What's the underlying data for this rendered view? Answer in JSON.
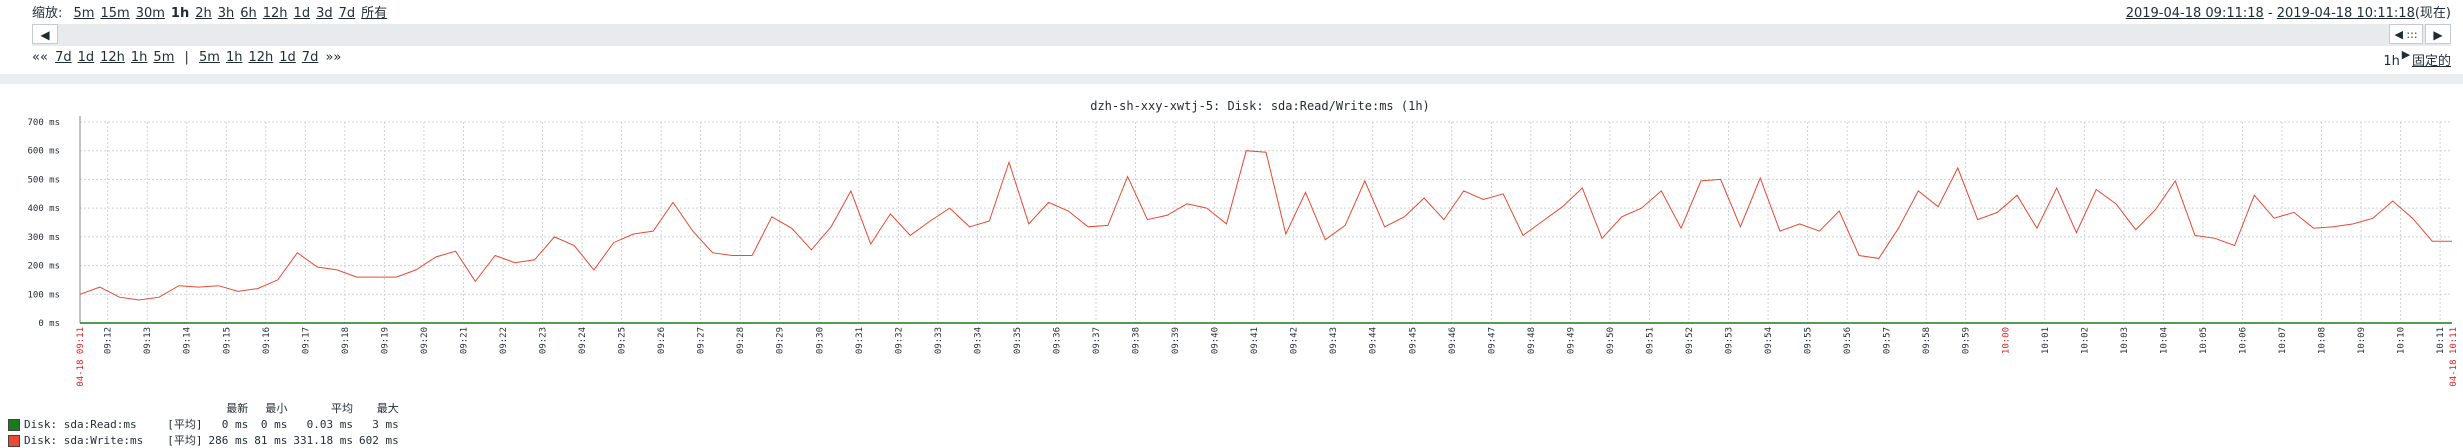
{
  "zoom": {
    "label": "缩放:",
    "options": [
      "5m",
      "15m",
      "30m",
      "1h",
      "2h",
      "3h",
      "6h",
      "12h",
      "1d",
      "3d",
      "7d",
      "所有"
    ],
    "active": "1h"
  },
  "range": {
    "from": "2019-04-18 09:11:18",
    "sep": " - ",
    "to": "2019-04-18 10:11:18",
    "now": "(现在)"
  },
  "scroll": {
    "left_btn": "◀",
    "right_btn": "▶",
    "mid_btn": "◀ ::: ▶"
  },
  "nav": {
    "back": "««",
    "back_items": [
      "7d",
      "1d",
      "12h",
      "1h",
      "5m"
    ],
    "sep": "|",
    "fwd_items": [
      "5m",
      "1h",
      "12h",
      "1d",
      "7d"
    ],
    "fwd": "»»"
  },
  "period": {
    "value": "1h",
    "fixed_label": "固定的"
  },
  "chart_data": {
    "type": "line",
    "title": "dzh-sh-xxy-xwtj-5:  Disk: sda:Read/Write:ms  (1h)",
    "ylim": [
      0,
      700
    ],
    "yticks": [
      "0 ms",
      "100 ms",
      "200 ms",
      "300 ms",
      "400 ms",
      "500 ms",
      "600 ms",
      "700 ms"
    ],
    "xticks": [
      "09:12",
      "09:13",
      "09:14",
      "09:15",
      "09:16",
      "09:17",
      "09:18",
      "09:19",
      "09:20",
      "09:21",
      "09:22",
      "09:23",
      "09:24",
      "09:25",
      "09:26",
      "09:27",
      "09:28",
      "09:29",
      "09:30",
      "09:31",
      "09:32",
      "09:33",
      "09:34",
      "09:35",
      "09:36",
      "09:37",
      "09:38",
      "09:39",
      "09:40",
      "09:41",
      "09:42",
      "09:43",
      "09:44",
      "09:45",
      "09:46",
      "09:47",
      "09:48",
      "09:49",
      "09:50",
      "09:51",
      "09:52",
      "09:53",
      "09:54",
      "09:55",
      "09:56",
      "09:57",
      "09:58",
      "09:59",
      "10:00",
      "10:01",
      "10:02",
      "10:03",
      "10:04",
      "10:05",
      "10:06",
      "10:07",
      "10:08",
      "10:09",
      "10:10",
      "10:11"
    ],
    "start_label": "04-18 09:11",
    "end_label": "04-18 10:11",
    "grid": true,
    "series": [
      {
        "name": "Disk: sda:Read:ms",
        "color": "#1b7a1b",
        "values": [
          0,
          0,
          0,
          0,
          0,
          0,
          0,
          0,
          0,
          0,
          0,
          0,
          0,
          0,
          0,
          0,
          0,
          0,
          0,
          0,
          0,
          0,
          0,
          0,
          0,
          0,
          0,
          0,
          0,
          0,
          0,
          0,
          0,
          0,
          0,
          0,
          0,
          0,
          0,
          0,
          0,
          0,
          0,
          0,
          0,
          0,
          0,
          0,
          0,
          0,
          0,
          0,
          0,
          0,
          0,
          0,
          0,
          0,
          0,
          0,
          0,
          0,
          0,
          0,
          0,
          0,
          0,
          0,
          0,
          0,
          0,
          0,
          0,
          0,
          0,
          0,
          0,
          0,
          0,
          0,
          0,
          0,
          0,
          0,
          0,
          0,
          0,
          0,
          0,
          0,
          0,
          0,
          0,
          0,
          0,
          0,
          0,
          0,
          0,
          0,
          0,
          0,
          0,
          0,
          0,
          0,
          0,
          0,
          0,
          0,
          0,
          0,
          0,
          0,
          0,
          0,
          0,
          0,
          0,
          0
        ]
      },
      {
        "name": "Disk: sda:Write:ms",
        "color": "#e84a33",
        "values": [
          100,
          125,
          90,
          80,
          90,
          130,
          125,
          130,
          110,
          120,
          150,
          245,
          195,
          185,
          160,
          160,
          160,
          185,
          230,
          250,
          145,
          235,
          210,
          220,
          300,
          270,
          185,
          280,
          310,
          320,
          420,
          320,
          245,
          235,
          235,
          370,
          330,
          255,
          335,
          460,
          275,
          380,
          305,
          355,
          400,
          335,
          355,
          560,
          345,
          420,
          390,
          335,
          340,
          510,
          360,
          375,
          415,
          400,
          345,
          600,
          595,
          310,
          455,
          290,
          340,
          495,
          335,
          370,
          435,
          360,
          460,
          430,
          450,
          305,
          355,
          405,
          470,
          295,
          370,
          400,
          460,
          330,
          495,
          500,
          335,
          505,
          320,
          345,
          320,
          390,
          235,
          225,
          330,
          460,
          405,
          540,
          360,
          385,
          445,
          330,
          470,
          315,
          465,
          415,
          325,
          395,
          495,
          305,
          295,
          270,
          445,
          365,
          385,
          330,
          335,
          345,
          365,
          425,
          365,
          285,
          285
        ]
      }
    ]
  },
  "legend": {
    "headers": [
      "最新",
      "最小",
      "平均",
      "最大"
    ],
    "rows": [
      {
        "name": "Disk: sda:Read:ms",
        "kind": "[平均]",
        "last": "0 ms",
        "min": "0 ms",
        "avg": "0.03 ms",
        "max": "3 ms",
        "color": "#1b7a1b"
      },
      {
        "name": "Disk: sda:Write:ms",
        "kind": "[平均]",
        "last": "286 ms",
        "min": "81 ms",
        "avg": "331.18 ms",
        "max": "602 ms",
        "color": "#e84a33"
      }
    ]
  }
}
